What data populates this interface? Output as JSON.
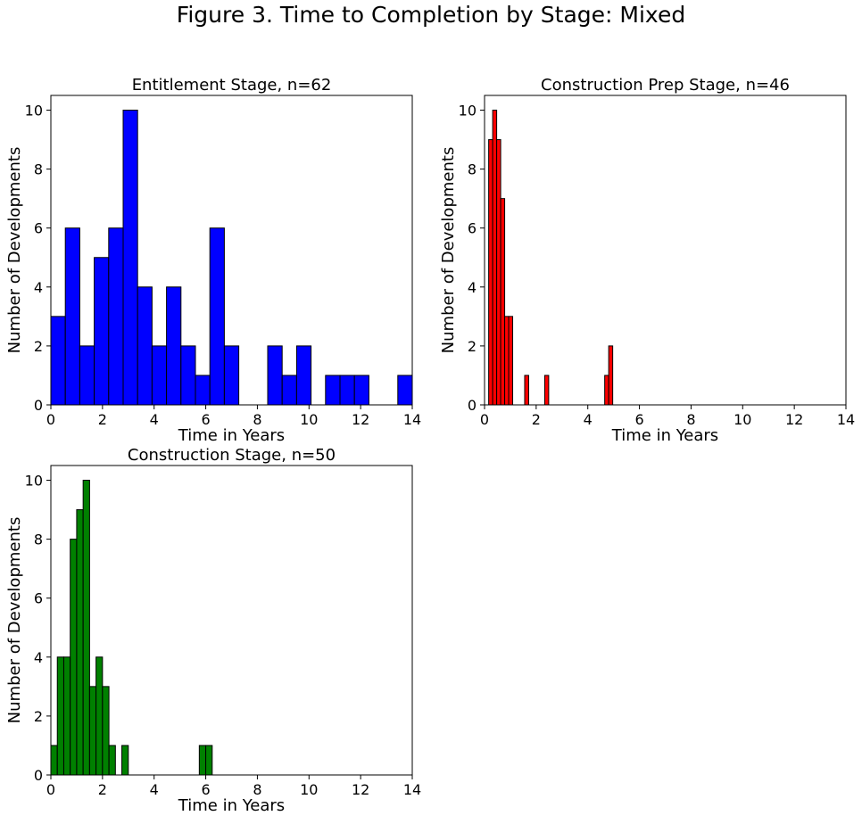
{
  "figure_title": "Figure 3. Time to Completion by Stage: Mixed",
  "chart_data": [
    {
      "type": "bar",
      "title": "Entitlement Stage, n=62",
      "xlabel": "Time in Years",
      "ylabel": "Number of Developments",
      "xlim": [
        0,
        14
      ],
      "ylim": [
        0,
        10.5
      ],
      "xticks": [
        0,
        2,
        4,
        6,
        8,
        10,
        12,
        14
      ],
      "yticks": [
        0,
        2,
        4,
        6,
        8,
        10
      ],
      "color": "#0000ff",
      "bin_width": 0.56,
      "bins": [
        {
          "x": 0.0,
          "count": 3
        },
        {
          "x": 0.56,
          "count": 6
        },
        {
          "x": 1.12,
          "count": 2
        },
        {
          "x": 1.68,
          "count": 5
        },
        {
          "x": 2.24,
          "count": 6
        },
        {
          "x": 2.8,
          "count": 10
        },
        {
          "x": 3.36,
          "count": 4
        },
        {
          "x": 3.92,
          "count": 2
        },
        {
          "x": 4.48,
          "count": 4
        },
        {
          "x": 5.04,
          "count": 2
        },
        {
          "x": 5.6,
          "count": 1
        },
        {
          "x": 6.16,
          "count": 6
        },
        {
          "x": 6.72,
          "count": 2
        },
        {
          "x": 8.4,
          "count": 2
        },
        {
          "x": 8.96,
          "count": 1
        },
        {
          "x": 9.52,
          "count": 2
        },
        {
          "x": 10.64,
          "count": 1
        },
        {
          "x": 11.2,
          "count": 1
        },
        {
          "x": 11.76,
          "count": 1
        },
        {
          "x": 13.44,
          "count": 1
        }
      ]
    },
    {
      "type": "bar",
      "title": "Construction Prep Stage, n=46",
      "xlabel": "Time in Years",
      "ylabel": "Number of Developments",
      "xlim": [
        0,
        14
      ],
      "ylim": [
        0,
        10.5
      ],
      "xticks": [
        0,
        2,
        4,
        6,
        8,
        10,
        12,
        14
      ],
      "yticks": [
        0,
        2,
        4,
        6,
        8,
        10
      ],
      "color": "#ff0000",
      "bin_width": 0.155,
      "bins": [
        {
          "x": 0.16,
          "count": 9
        },
        {
          "x": 0.315,
          "count": 10
        },
        {
          "x": 0.47,
          "count": 9
        },
        {
          "x": 0.625,
          "count": 7
        },
        {
          "x": 0.78,
          "count": 3
        },
        {
          "x": 0.935,
          "count": 3
        },
        {
          "x": 1.555,
          "count": 1
        },
        {
          "x": 2.33,
          "count": 1
        },
        {
          "x": 4.655,
          "count": 1
        },
        {
          "x": 4.81,
          "count": 2
        }
      ]
    },
    {
      "type": "bar",
      "title": "Construction Stage, n=50",
      "xlabel": "Time in Years",
      "ylabel": "Number of Developments",
      "xlim": [
        0,
        14
      ],
      "ylim": [
        0,
        10.5
      ],
      "xticks": [
        0,
        2,
        4,
        6,
        8,
        10,
        12,
        14
      ],
      "yticks": [
        0,
        2,
        4,
        6,
        8,
        10
      ],
      "color": "#008000",
      "bin_width": 0.25,
      "bins": [
        {
          "x": 0.0,
          "count": 1
        },
        {
          "x": 0.25,
          "count": 4
        },
        {
          "x": 0.5,
          "count": 4
        },
        {
          "x": 0.75,
          "count": 8
        },
        {
          "x": 1.0,
          "count": 9
        },
        {
          "x": 1.25,
          "count": 10
        },
        {
          "x": 1.5,
          "count": 3
        },
        {
          "x": 1.75,
          "count": 4
        },
        {
          "x": 2.0,
          "count": 3
        },
        {
          "x": 2.25,
          "count": 1
        },
        {
          "x": 2.75,
          "count": 1
        },
        {
          "x": 5.75,
          "count": 1
        },
        {
          "x": 6.0,
          "count": 1
        }
      ]
    }
  ]
}
